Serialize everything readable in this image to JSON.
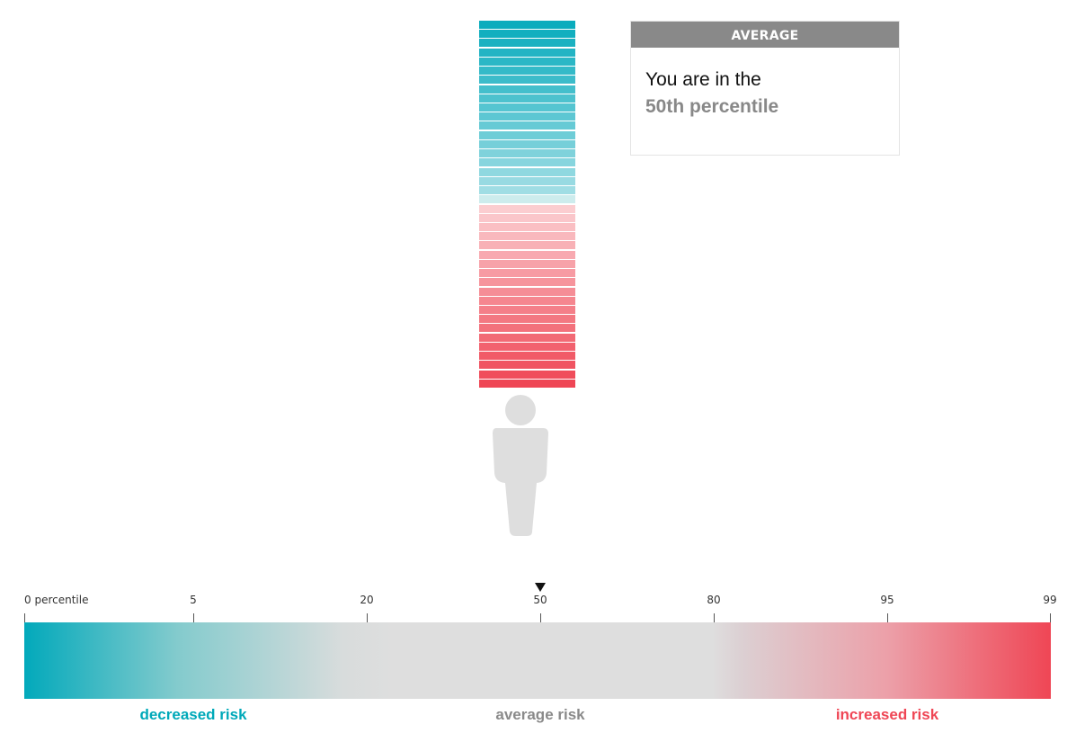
{
  "card": {
    "header": "AVERAGE",
    "line1": "You are in the",
    "line2": "50th percentile"
  },
  "percentile": 50,
  "stack": {
    "stripe_count": 40,
    "colors": {
      "decreased": "#0aacbd",
      "increased": "#ef4655",
      "neutral_light": "#cdeced"
    }
  },
  "person_icon": "person-silhouette-icon",
  "scale": {
    "ticks": [
      {
        "value": 0,
        "label": "0 percentile"
      },
      {
        "value": 5,
        "label": "5"
      },
      {
        "value": 20,
        "label": "20"
      },
      {
        "value": 50,
        "label": "50"
      },
      {
        "value": 80,
        "label": "80"
      },
      {
        "value": 95,
        "label": "95"
      },
      {
        "value": 99,
        "label": "99"
      }
    ],
    "marker_value": 50,
    "zones": {
      "decreased": {
        "label": "decreased risk",
        "color": "#00a9b9"
      },
      "average": {
        "label": "average risk",
        "color": "#8a8a8a"
      },
      "increased": {
        "label": "increased risk",
        "color": "#ef4655"
      }
    }
  }
}
